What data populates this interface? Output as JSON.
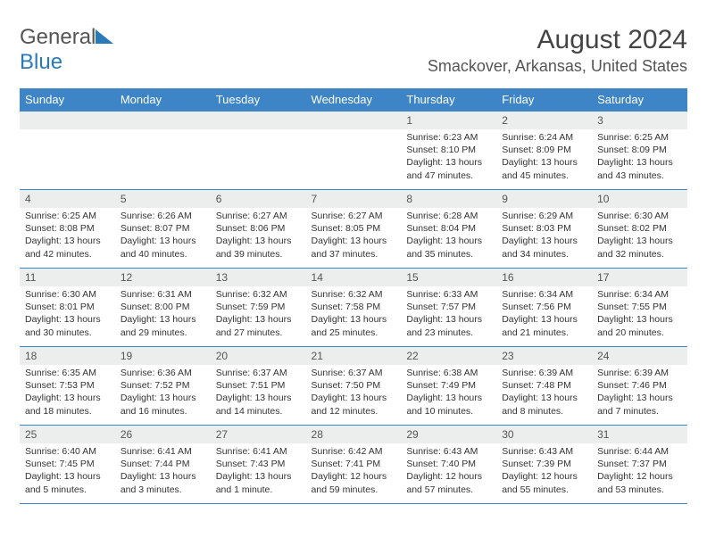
{
  "logo": {
    "word1": "General",
    "word2": "Blue"
  },
  "title": "August 2024",
  "location": "Smackover, Arkansas, United States",
  "colors": {
    "header_bg": "#3d85c6",
    "header_fg": "#ffffff",
    "row_border": "#3d85c6",
    "daynum_bg": "#eceded",
    "text": "#333333",
    "logo_gray": "#555555",
    "logo_blue": "#2a7ab9",
    "page_bg": "#ffffff"
  },
  "typography": {
    "title_fontsize": 30,
    "location_fontsize": 18,
    "weekday_fontsize": 13,
    "daynum_fontsize": 12,
    "body_fontsize": 10.5
  },
  "weekdays": [
    "Sunday",
    "Monday",
    "Tuesday",
    "Wednesday",
    "Thursday",
    "Friday",
    "Saturday"
  ],
  "weeks": [
    [
      null,
      null,
      null,
      null,
      {
        "n": "1",
        "sr": "Sunrise: 6:23 AM",
        "ss": "Sunset: 8:10 PM",
        "dl": "Daylight: 13 hours and 47 minutes."
      },
      {
        "n": "2",
        "sr": "Sunrise: 6:24 AM",
        "ss": "Sunset: 8:09 PM",
        "dl": "Daylight: 13 hours and 45 minutes."
      },
      {
        "n": "3",
        "sr": "Sunrise: 6:25 AM",
        "ss": "Sunset: 8:09 PM",
        "dl": "Daylight: 13 hours and 43 minutes."
      }
    ],
    [
      {
        "n": "4",
        "sr": "Sunrise: 6:25 AM",
        "ss": "Sunset: 8:08 PM",
        "dl": "Daylight: 13 hours and 42 minutes."
      },
      {
        "n": "5",
        "sr": "Sunrise: 6:26 AM",
        "ss": "Sunset: 8:07 PM",
        "dl": "Daylight: 13 hours and 40 minutes."
      },
      {
        "n": "6",
        "sr": "Sunrise: 6:27 AM",
        "ss": "Sunset: 8:06 PM",
        "dl": "Daylight: 13 hours and 39 minutes."
      },
      {
        "n": "7",
        "sr": "Sunrise: 6:27 AM",
        "ss": "Sunset: 8:05 PM",
        "dl": "Daylight: 13 hours and 37 minutes."
      },
      {
        "n": "8",
        "sr": "Sunrise: 6:28 AM",
        "ss": "Sunset: 8:04 PM",
        "dl": "Daylight: 13 hours and 35 minutes."
      },
      {
        "n": "9",
        "sr": "Sunrise: 6:29 AM",
        "ss": "Sunset: 8:03 PM",
        "dl": "Daylight: 13 hours and 34 minutes."
      },
      {
        "n": "10",
        "sr": "Sunrise: 6:30 AM",
        "ss": "Sunset: 8:02 PM",
        "dl": "Daylight: 13 hours and 32 minutes."
      }
    ],
    [
      {
        "n": "11",
        "sr": "Sunrise: 6:30 AM",
        "ss": "Sunset: 8:01 PM",
        "dl": "Daylight: 13 hours and 30 minutes."
      },
      {
        "n": "12",
        "sr": "Sunrise: 6:31 AM",
        "ss": "Sunset: 8:00 PM",
        "dl": "Daylight: 13 hours and 29 minutes."
      },
      {
        "n": "13",
        "sr": "Sunrise: 6:32 AM",
        "ss": "Sunset: 7:59 PM",
        "dl": "Daylight: 13 hours and 27 minutes."
      },
      {
        "n": "14",
        "sr": "Sunrise: 6:32 AM",
        "ss": "Sunset: 7:58 PM",
        "dl": "Daylight: 13 hours and 25 minutes."
      },
      {
        "n": "15",
        "sr": "Sunrise: 6:33 AM",
        "ss": "Sunset: 7:57 PM",
        "dl": "Daylight: 13 hours and 23 minutes."
      },
      {
        "n": "16",
        "sr": "Sunrise: 6:34 AM",
        "ss": "Sunset: 7:56 PM",
        "dl": "Daylight: 13 hours and 21 minutes."
      },
      {
        "n": "17",
        "sr": "Sunrise: 6:34 AM",
        "ss": "Sunset: 7:55 PM",
        "dl": "Daylight: 13 hours and 20 minutes."
      }
    ],
    [
      {
        "n": "18",
        "sr": "Sunrise: 6:35 AM",
        "ss": "Sunset: 7:53 PM",
        "dl": "Daylight: 13 hours and 18 minutes."
      },
      {
        "n": "19",
        "sr": "Sunrise: 6:36 AM",
        "ss": "Sunset: 7:52 PM",
        "dl": "Daylight: 13 hours and 16 minutes."
      },
      {
        "n": "20",
        "sr": "Sunrise: 6:37 AM",
        "ss": "Sunset: 7:51 PM",
        "dl": "Daylight: 13 hours and 14 minutes."
      },
      {
        "n": "21",
        "sr": "Sunrise: 6:37 AM",
        "ss": "Sunset: 7:50 PM",
        "dl": "Daylight: 13 hours and 12 minutes."
      },
      {
        "n": "22",
        "sr": "Sunrise: 6:38 AM",
        "ss": "Sunset: 7:49 PM",
        "dl": "Daylight: 13 hours and 10 minutes."
      },
      {
        "n": "23",
        "sr": "Sunrise: 6:39 AM",
        "ss": "Sunset: 7:48 PM",
        "dl": "Daylight: 13 hours and 8 minutes."
      },
      {
        "n": "24",
        "sr": "Sunrise: 6:39 AM",
        "ss": "Sunset: 7:46 PM",
        "dl": "Daylight: 13 hours and 7 minutes."
      }
    ],
    [
      {
        "n": "25",
        "sr": "Sunrise: 6:40 AM",
        "ss": "Sunset: 7:45 PM",
        "dl": "Daylight: 13 hours and 5 minutes."
      },
      {
        "n": "26",
        "sr": "Sunrise: 6:41 AM",
        "ss": "Sunset: 7:44 PM",
        "dl": "Daylight: 13 hours and 3 minutes."
      },
      {
        "n": "27",
        "sr": "Sunrise: 6:41 AM",
        "ss": "Sunset: 7:43 PM",
        "dl": "Daylight: 13 hours and 1 minute."
      },
      {
        "n": "28",
        "sr": "Sunrise: 6:42 AM",
        "ss": "Sunset: 7:41 PM",
        "dl": "Daylight: 12 hours and 59 minutes."
      },
      {
        "n": "29",
        "sr": "Sunrise: 6:43 AM",
        "ss": "Sunset: 7:40 PM",
        "dl": "Daylight: 12 hours and 57 minutes."
      },
      {
        "n": "30",
        "sr": "Sunrise: 6:43 AM",
        "ss": "Sunset: 7:39 PM",
        "dl": "Daylight: 12 hours and 55 minutes."
      },
      {
        "n": "31",
        "sr": "Sunrise: 6:44 AM",
        "ss": "Sunset: 7:37 PM",
        "dl": "Daylight: 12 hours and 53 minutes."
      }
    ]
  ]
}
